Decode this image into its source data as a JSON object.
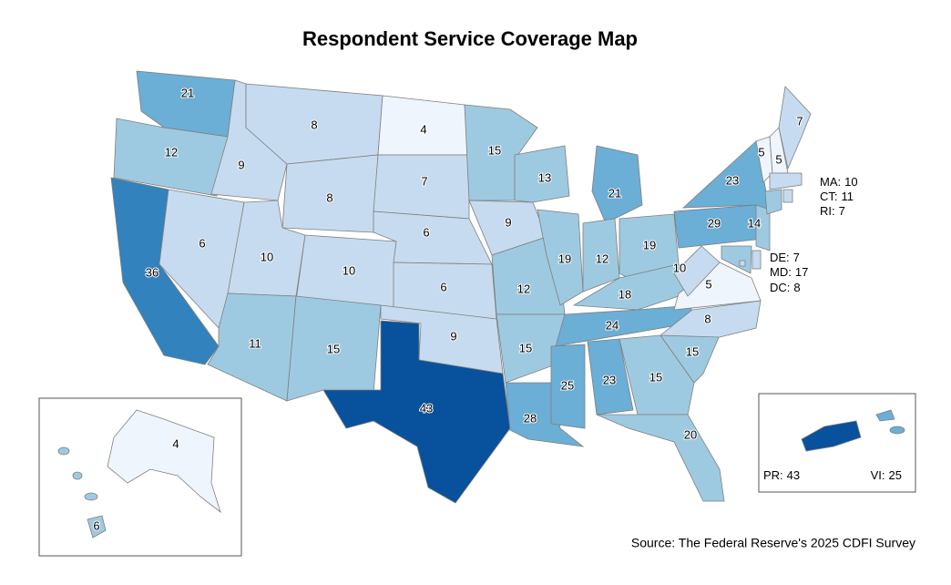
{
  "title": "Respondent Service Coverage Map",
  "source": "Source: The Federal Reserve's 2025 CDFI Survey",
  "states": [
    {
      "value": 21,
      "color": "#6baed6"
    },
    {
      "value": 12,
      "color": "#9ecae1"
    },
    {
      "value": 36,
      "color": "#3182bd"
    },
    {
      "value": 6,
      "color": "#c6dbef"
    },
    {
      "value": 9,
      "color": "#c6dbef"
    },
    {
      "value": 8,
      "color": "#c6dbef"
    },
    {
      "value": 8,
      "color": "#c6dbef"
    },
    {
      "value": 10,
      "color": "#c6dbef"
    },
    {
      "value": 10,
      "color": "#c6dbef"
    },
    {
      "value": 11,
      "color": "#9ecae1"
    },
    {
      "value": 15,
      "color": "#9ecae1"
    },
    {
      "value": 4,
      "color": "#eff5fc"
    },
    {
      "value": 7,
      "color": "#c6dbef"
    },
    {
      "value": 6,
      "color": "#c6dbef"
    },
    {
      "value": 6,
      "color": "#c6dbef"
    },
    {
      "value": 9,
      "color": "#c6dbef"
    },
    {
      "value": 43,
      "color": "#08519c"
    },
    {
      "value": 15,
      "color": "#9ecae1"
    },
    {
      "value": 9,
      "color": "#c6dbef"
    },
    {
      "value": 12,
      "color": "#9ecae1"
    },
    {
      "value": 15,
      "color": "#9ecae1"
    },
    {
      "value": 28,
      "color": "#6baed6"
    },
    {
      "value": 13,
      "color": "#9ecae1"
    },
    {
      "value": 19,
      "color": "#9ecae1"
    },
    {
      "value": 21,
      "color": "#6baed6"
    },
    {
      "value": 12,
      "color": "#9ecae1"
    },
    {
      "value": 19,
      "color": "#9ecae1"
    },
    {
      "value": 18,
      "color": "#9ecae1"
    },
    {
      "value": 24,
      "color": "#6baed6"
    },
    {
      "value": 25,
      "color": "#6baed6"
    },
    {
      "value": 23,
      "color": "#6baed6"
    },
    {
      "value": 15,
      "color": "#9ecae1"
    },
    {
      "value": 20,
      "color": "#9ecae1"
    },
    {
      "value": 15,
      "color": "#9ecae1"
    },
    {
      "value": 8,
      "color": "#c6dbef"
    },
    {
      "value": 5,
      "color": "#eff5fc"
    },
    {
      "value": 10,
      "color": "#c6dbef"
    },
    {
      "value": 29,
      "color": "#6baed6"
    },
    {
      "value": 23,
      "color": "#6baed6"
    },
    {
      "value": 5,
      "color": "#eff5fc"
    },
    {
      "value": 5,
      "color": "#eff5fc"
    },
    {
      "value": 7,
      "color": "#c6dbef"
    },
    {
      "value": 14,
      "color": "#9ecae1"
    },
    {
      "value": 4,
      "color": "#eff5fc"
    },
    {
      "value": 6,
      "color": "#9ecae1"
    }
  ],
  "small_states": [
    {
      "label": "MA:",
      "value": 10,
      "color": "#c6dbef"
    },
    {
      "label": "CT:",
      "value": 11,
      "color": "#9ecae1"
    },
    {
      "label": "RI:",
      "value": 7,
      "color": "#c6dbef"
    },
    {
      "label": "DE:",
      "value": 7,
      "color": "#c6dbef"
    },
    {
      "label": "MD:",
      "value": 17,
      "color": "#9ecae1"
    },
    {
      "label": "DC:",
      "value": 8,
      "color": "#c6dbef"
    },
    {
      "label": "PR:",
      "value": 43,
      "color": "#08519c"
    },
    {
      "label": "VI:",
      "value": 25,
      "color": "#6baed6"
    }
  ]
}
